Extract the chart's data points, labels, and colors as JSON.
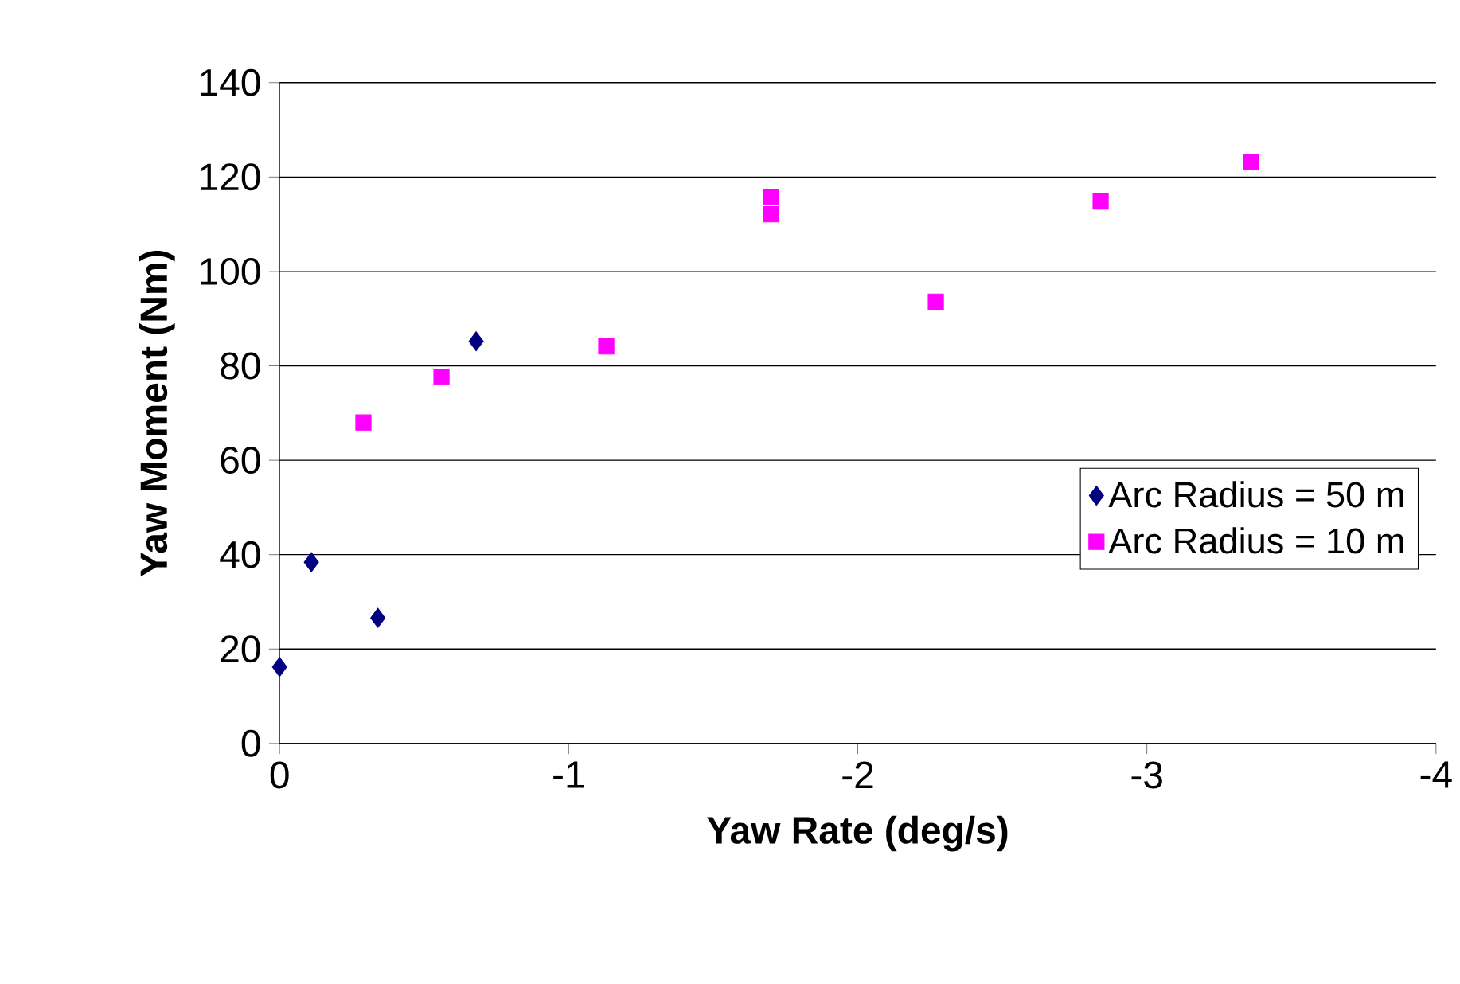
{
  "chart_data": {
    "type": "scatter",
    "xlabel": "Yaw Rate (deg/s)",
    "ylabel": "Yaw Moment (Nm)",
    "xlim": [
      0,
      -4
    ],
    "xticks": [
      0,
      -1,
      -2,
      -3,
      -4
    ],
    "ylim": [
      0,
      140
    ],
    "yticks": [
      0,
      20,
      40,
      60,
      80,
      100,
      120,
      140
    ],
    "grid": "y",
    "legend": "right",
    "series": [
      {
        "name": "Arc Radius = 50 m",
        "color": "#000080",
        "marker": "diamond",
        "x": [
          0,
          -0.11,
          -0.34,
          -0.68
        ],
        "values": [
          16.2,
          38.4,
          26.6,
          85.2
        ]
      },
      {
        "name": "Arc Radius = 10 m",
        "color": "#ff00ff",
        "marker": "square",
        "x": [
          -0.29,
          -0.56,
          -1.13,
          -1.7,
          -1.7,
          -2.27,
          -2.84,
          -3.36
        ],
        "values": [
          68,
          77.7,
          84.1,
          115.8,
          112.1,
          93.6,
          114.8,
          123.2
        ]
      }
    ]
  }
}
